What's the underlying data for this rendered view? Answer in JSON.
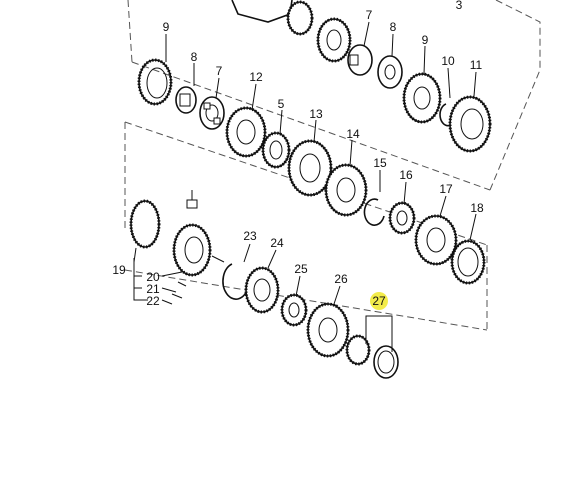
{
  "diagram": {
    "callouts": [
      {
        "id": "3",
        "text": "3"
      },
      {
        "id": "9a",
        "text": "9"
      },
      {
        "id": "7a",
        "text": "7"
      },
      {
        "id": "8a",
        "text": "8"
      },
      {
        "id": "9b",
        "text": "9"
      },
      {
        "id": "8b",
        "text": "8"
      },
      {
        "id": "7b",
        "text": "7"
      },
      {
        "id": "12",
        "text": "12"
      },
      {
        "id": "10",
        "text": "10"
      },
      {
        "id": "11",
        "text": "11"
      },
      {
        "id": "5",
        "text": "5"
      },
      {
        "id": "13",
        "text": "13"
      },
      {
        "id": "14",
        "text": "14"
      },
      {
        "id": "15",
        "text": "15"
      },
      {
        "id": "16",
        "text": "16"
      },
      {
        "id": "17",
        "text": "17"
      },
      {
        "id": "18",
        "text": "18"
      },
      {
        "id": "23",
        "text": "23"
      },
      {
        "id": "24",
        "text": "24"
      },
      {
        "id": "19",
        "text": "19"
      },
      {
        "id": "20",
        "text": "20"
      },
      {
        "id": "21",
        "text": "21"
      },
      {
        "id": "22",
        "text": "22"
      },
      {
        "id": "25",
        "text": "25"
      },
      {
        "id": "26",
        "text": "26"
      },
      {
        "id": "27",
        "text": "27"
      }
    ],
    "highlighted_callout": "27",
    "highlight_color": "#f3ec4a",
    "line_color": "#111111"
  }
}
